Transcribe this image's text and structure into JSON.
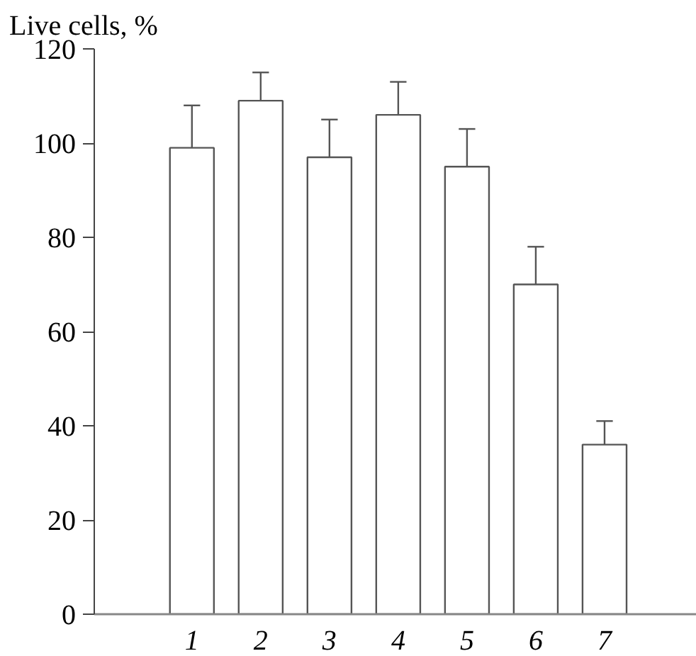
{
  "chart_data": {
    "type": "bar",
    "ylabel": "Live cells, %",
    "categories": [
      "1",
      "2",
      "3",
      "4",
      "5",
      "6",
      "7"
    ],
    "values": [
      99,
      109,
      97,
      106,
      95,
      70,
      36
    ],
    "errors": [
      [
        99,
        108
      ],
      [
        109,
        115
      ],
      [
        97,
        105
      ],
      [
        106,
        113
      ],
      [
        95,
        103
      ],
      [
        70,
        78
      ],
      [
        36,
        41
      ]
    ],
    "color": "#ffffff",
    "ylim": [
      0,
      120
    ],
    "yticks": [
      0,
      20,
      40,
      60,
      80,
      100,
      120
    ],
    "grid": false
  }
}
